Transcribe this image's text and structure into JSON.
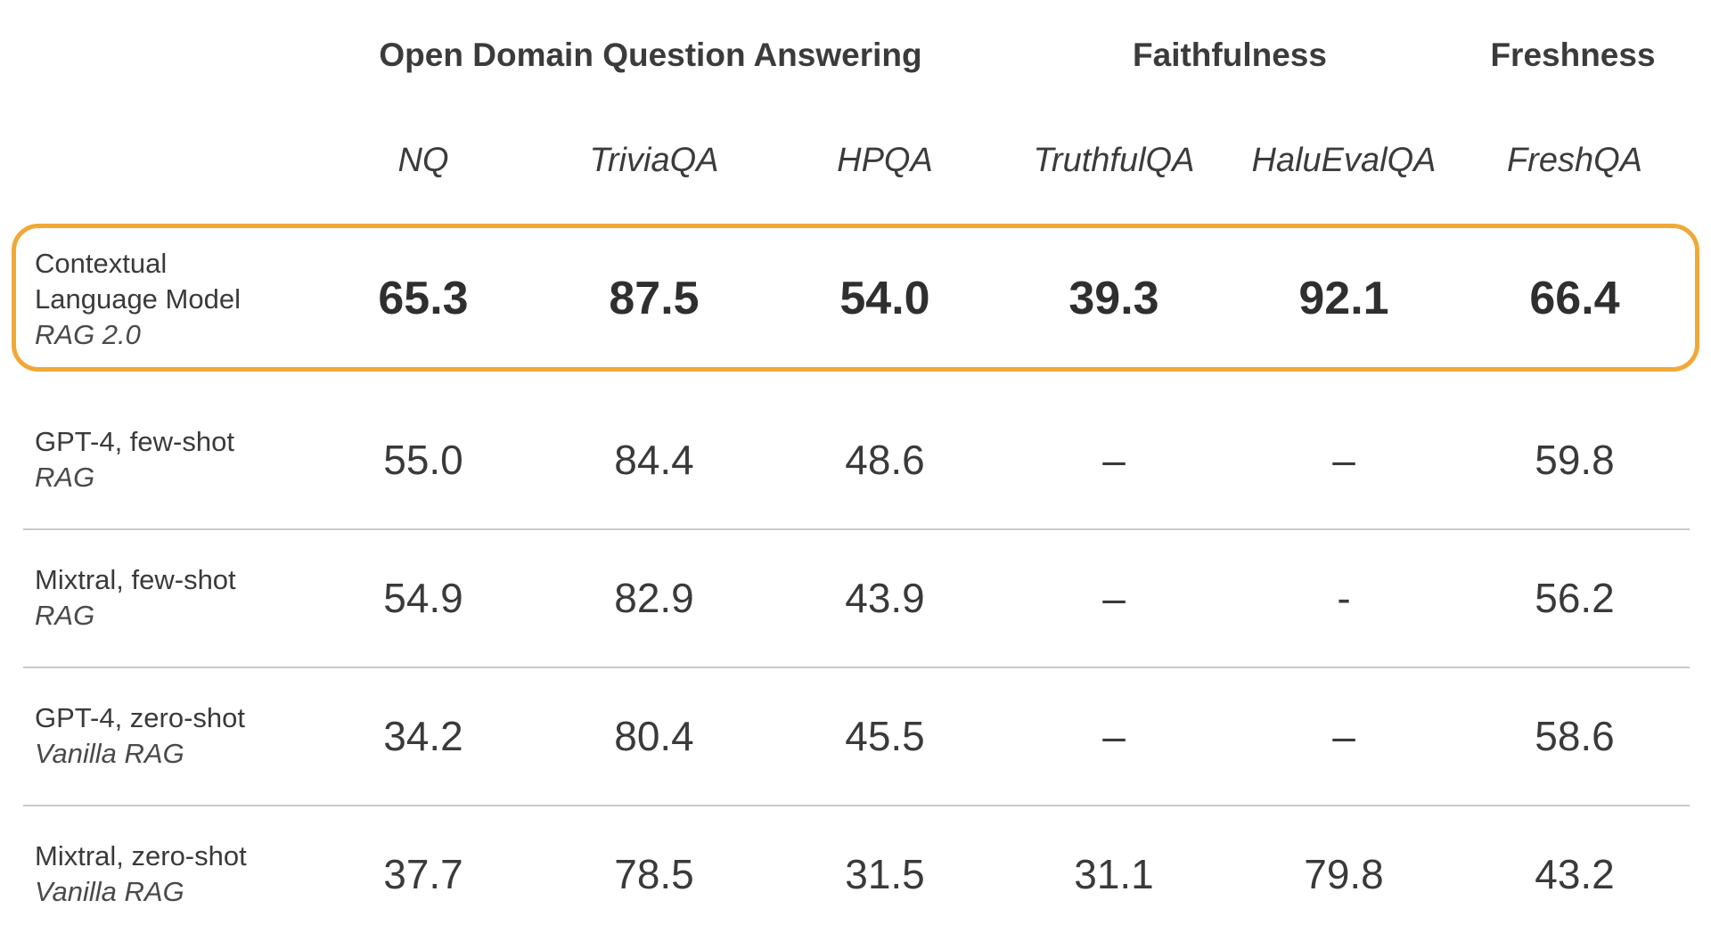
{
  "chart_data": {
    "type": "table",
    "groups": [
      {
        "name": "Open Domain Question Answering",
        "columns": [
          "NQ",
          "TriviaQA",
          "HPQA"
        ]
      },
      {
        "name": "Faithfulness",
        "columns": [
          "TruthfulQA",
          "HaluEvalQA"
        ]
      },
      {
        "name": "Freshness",
        "columns": [
          "FreshQA"
        ]
      }
    ],
    "columns": [
      "NQ",
      "TriviaQA",
      "HPQA",
      "TruthfulQA",
      "HaluEvalQA",
      "FreshQA"
    ],
    "rows": [
      {
        "model_lines": [
          "Contextual",
          "Language Model"
        ],
        "method": "RAG 2.0",
        "values": [
          "65.3",
          "87.5",
          "54.0",
          "39.3",
          "92.1",
          "66.4"
        ],
        "highlighted": true
      },
      {
        "model_lines": [
          "GPT-4, few-shot"
        ],
        "method": "RAG",
        "values": [
          "55.0",
          "84.4",
          "48.6",
          "–",
          "–",
          "59.8"
        ],
        "highlighted": false
      },
      {
        "model_lines": [
          "Mixtral, few-shot"
        ],
        "method": "RAG",
        "values": [
          "54.9",
          "82.9",
          "43.9",
          "–",
          "-",
          "56.2"
        ],
        "highlighted": false
      },
      {
        "model_lines": [
          "GPT-4, zero-shot"
        ],
        "method": "Vanilla RAG",
        "values": [
          "34.2",
          "80.4",
          "45.5",
          "–",
          "–",
          "58.6"
        ],
        "highlighted": false
      },
      {
        "model_lines": [
          "Mixtral, zero-shot"
        ],
        "method": "Vanilla RAG",
        "values": [
          "37.7",
          "78.5",
          "31.5",
          "31.1",
          "79.8",
          "43.2"
        ],
        "highlighted": false
      }
    ]
  },
  "colors": {
    "highlight_border": "#f0a937",
    "text": "#3a3a3a",
    "divider": "#c9c9c9"
  }
}
